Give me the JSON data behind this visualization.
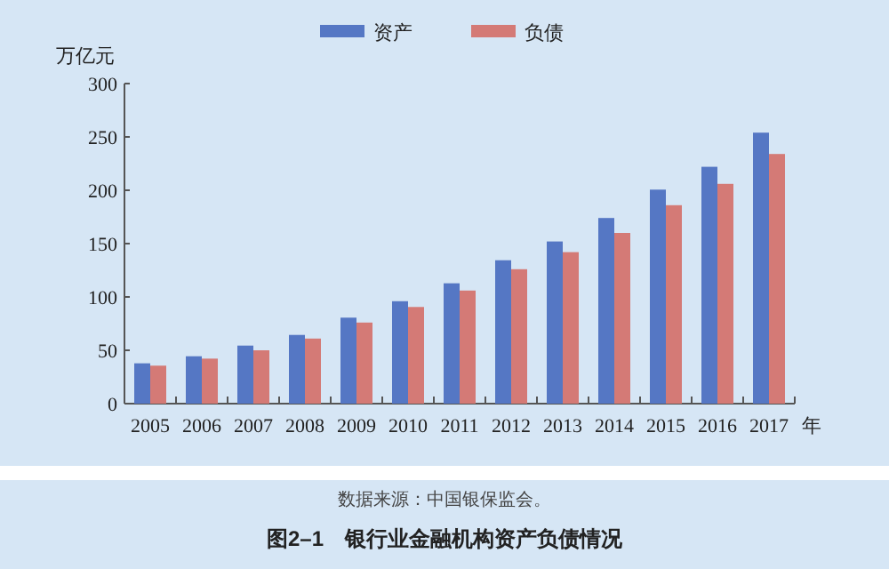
{
  "chart_data": {
    "type": "bar",
    "title": "图2–1　银行业金融机构资产负债情况",
    "ylabel": "万亿元",
    "xlabel": "年",
    "categories": [
      "2005",
      "2006",
      "2007",
      "2008",
      "2009",
      "2010",
      "2011",
      "2012",
      "2013",
      "2014",
      "2015",
      "2016",
      "2017"
    ],
    "series": [
      {
        "name": "资产",
        "color": "#5577c4",
        "values": [
          37.8,
          44.4,
          54.4,
          64.4,
          80.6,
          96,
          112.8,
          134.4,
          152,
          174,
          200.6,
          222,
          254
        ]
      },
      {
        "name": "负债",
        "color": "#d47a76",
        "values": [
          35.6,
          42.2,
          50,
          61,
          76,
          90.6,
          106,
          126,
          142,
          160,
          186,
          206,
          234
        ]
      }
    ],
    "ylim": [
      0,
      300
    ],
    "yticks": [
      0,
      50,
      100,
      150,
      200,
      250,
      300
    ],
    "legend": "top",
    "grid": false,
    "annotations": [
      "数据来源：中国银保监会。"
    ]
  }
}
